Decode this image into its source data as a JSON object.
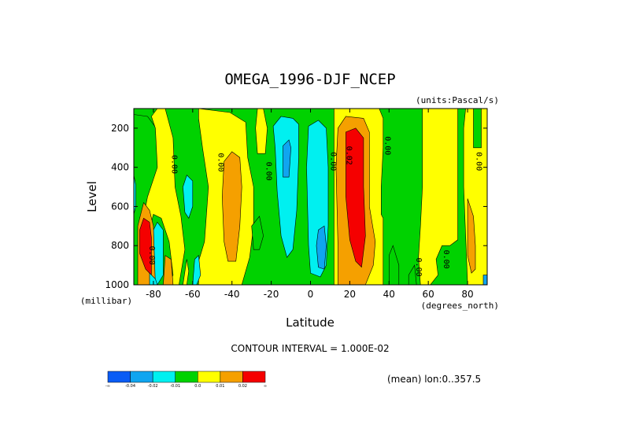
{
  "chart_data": {
    "type": "heatmap",
    "title": "OMEGA_1996-DJF_NCEP",
    "units_label": "(units:Pascal/s)",
    "xlabel": "Latitude",
    "ylabel": "Level",
    "x_unit_label": "(degrees_north)",
    "y_unit_label": "(millibar)",
    "xlim": [
      -90,
      90
    ],
    "ylim": [
      1000,
      100
    ],
    "x_ticks": [
      -80,
      -60,
      -40,
      -20,
      0,
      20,
      40,
      60,
      80
    ],
    "y_ticks": [
      200,
      400,
      600,
      800,
      1000
    ],
    "contour_interval_text": "CONTOUR INTERVAL = 1.000E-02",
    "mean_note": "(mean) lon:0..357.5",
    "contour_labels": [
      {
        "text": "0.00",
        "lat": -70.5,
        "lev": 385
      },
      {
        "text": "0.00",
        "lat": -47,
        "lev": 375
      },
      {
        "text": "0.00",
        "lat": -22.5,
        "lev": 420
      },
      {
        "text": "0.00",
        "lat": 10.5,
        "lev": 370
      },
      {
        "text": "0.02",
        "lat": 18.5,
        "lev": 340
      },
      {
        "text": "0.00",
        "lat": 38,
        "lev": 290
      },
      {
        "text": "0.00",
        "lat": 84.5,
        "lev": 370
      },
      {
        "text": "0.00",
        "lat": 54,
        "lev": 910
      },
      {
        "text": "0.00",
        "lat": 68,
        "lev": 870
      },
      {
        "text": "0.00",
        "lat": -82,
        "lev": 850
      }
    ],
    "legend": {
      "colors": [
        "#0a5cf5",
        "#10a5f0",
        "#00f0f0",
        "#00d200",
        "#ffff00",
        "#f5a000",
        "#f50000"
      ],
      "labels": [
        "-∞",
        "-0.04",
        "-0.02",
        "-0.01",
        "0.0",
        "0.01",
        "0.02",
        "∞"
      ]
    },
    "regions": {
      "colors": {
        "cyan": "#00f0f0",
        "blue": "#10a5f0",
        "green": "#00d200",
        "yellow": "#ffff00",
        "orange": "#f5a000",
        "red": "#f50000"
      },
      "blobs": [
        {
          "color": "green",
          "pts": [
            [
              -90,
              130
            ],
            [
              -83,
              140
            ],
            [
              -75,
              250
            ],
            [
              -74,
              650
            ],
            [
              -79,
              1000
            ],
            [
              -90,
              1000
            ]
          ]
        },
        {
          "color": "cyan",
          "pts": [
            [
              -90,
              440
            ],
            [
              -89,
              490
            ],
            [
              -89,
              600
            ],
            [
              -90,
              640
            ]
          ]
        },
        {
          "color": "yellow",
          "pts": [
            [
              -81,
              140
            ],
            [
              -78,
              100
            ],
            [
              -74,
              100
            ],
            [
              -70,
              250
            ],
            [
              -69,
              500
            ],
            [
              -66,
              650
            ],
            [
              -64,
              820
            ],
            [
              -67,
              1000
            ],
            [
              -76,
              1000
            ],
            [
              -79,
              800
            ],
            [
              -86,
              700
            ],
            [
              -83,
              550
            ],
            [
              -78,
              400
            ],
            [
              -79,
              200
            ]
          ]
        },
        {
          "color": "green",
          "pts": [
            [
              -80,
              640
            ],
            [
              -76,
              660
            ],
            [
              -72,
              780
            ],
            [
              -70,
              950
            ],
            [
              -72,
              1000
            ],
            [
              -81,
              1000
            ],
            [
              -84,
              800
            ]
          ]
        },
        {
          "color": "cyan",
          "pts": [
            [
              -82,
              760
            ],
            [
              -78,
              680
            ],
            [
              -75,
              720
            ],
            [
              -75,
              950
            ],
            [
              -78,
              1000
            ],
            [
              -83,
              1000
            ]
          ]
        },
        {
          "color": "orange",
          "pts": [
            [
              -88,
              700
            ],
            [
              -85,
              580
            ],
            [
              -82,
              620
            ],
            [
              -80,
              700
            ],
            [
              -79,
              1000
            ],
            [
              -88,
              1000
            ]
          ]
        },
        {
          "color": "red",
          "pts": [
            [
              -87,
              720
            ],
            [
              -85,
              660
            ],
            [
              -82,
              680
            ],
            [
              -81,
              760
            ],
            [
              -81,
              950
            ],
            [
              -84,
              920
            ],
            [
              -87,
              840
            ]
          ]
        },
        {
          "color": "orange",
          "pts": [
            [
              -74,
              850
            ],
            [
              -71,
              870
            ],
            [
              -70,
              1000
            ],
            [
              -75,
              1000
            ]
          ]
        },
        {
          "color": "yellow",
          "pts": [
            [
              -57,
              100
            ],
            [
              -41,
              120
            ],
            [
              -33,
              170
            ],
            [
              -32,
              350
            ],
            [
              -29,
              500
            ],
            [
              -29,
              700
            ],
            [
              -31,
              860
            ],
            [
              -35,
              1000
            ],
            [
              -57,
              1000
            ],
            [
              -57,
              880
            ],
            [
              -54,
              780
            ],
            [
              -52,
              500
            ],
            [
              -55,
              300
            ],
            [
              -57,
              150
            ]
          ]
        },
        {
          "color": "orange",
          "pts": [
            [
              -44,
              370
            ],
            [
              -40,
              320
            ],
            [
              -36,
              350
            ],
            [
              -35,
              500
            ],
            [
              -36,
              700
            ],
            [
              -38,
              880
            ],
            [
              -42,
              880
            ],
            [
              -44,
              780
            ],
            [
              -45,
              550
            ]
          ]
        },
        {
          "color": "cyan",
          "pts": [
            [
              -65,
              500
            ],
            [
              -63,
              440
            ],
            [
              -60,
              470
            ],
            [
              -60,
              600
            ],
            [
              -62,
              660
            ],
            [
              -64,
              630
            ]
          ]
        },
        {
          "color": "cyan",
          "pts": [
            [
              -59,
              870
            ],
            [
              -57,
              850
            ],
            [
              -56,
              950
            ],
            [
              -58,
              1000
            ],
            [
              -60,
              1000
            ]
          ]
        },
        {
          "color": "yellow",
          "pts": [
            [
              -27,
              100
            ],
            [
              -24,
              100
            ],
            [
              -22,
              200
            ],
            [
              -23,
              330
            ],
            [
              -27,
              330
            ],
            [
              -28,
              200
            ]
          ]
        },
        {
          "color": "cyan",
          "pts": [
            [
              -19,
              190
            ],
            [
              -15,
              140
            ],
            [
              -9,
              150
            ],
            [
              -6,
              180
            ],
            [
              -6,
              350
            ],
            [
              -7,
              620
            ],
            [
              -9,
              820
            ],
            [
              -12,
              860
            ],
            [
              -15,
              750
            ],
            [
              -17,
              520
            ],
            [
              -18,
              300
            ]
          ]
        },
        {
          "color": "blue",
          "pts": [
            [
              -14,
              290
            ],
            [
              -11,
              260
            ],
            [
              -10,
              300
            ],
            [
              -11,
              450
            ],
            [
              -14,
              450
            ]
          ]
        },
        {
          "color": "cyan",
          "pts": [
            [
              -1,
              190
            ],
            [
              4,
              160
            ],
            [
              8,
              200
            ],
            [
              9,
              400
            ],
            [
              9,
              700
            ],
            [
              8,
              900
            ],
            [
              5,
              960
            ],
            [
              0,
              940
            ],
            [
              -1,
              800
            ],
            [
              -2,
              400
            ]
          ]
        },
        {
          "color": "blue",
          "pts": [
            [
              4,
              720
            ],
            [
              7,
              700
            ],
            [
              8,
              800
            ],
            [
              7,
              920
            ],
            [
              4,
              910
            ],
            [
              3,
              800
            ]
          ]
        },
        {
          "color": "green",
          "pts": [
            [
              -30,
              700
            ],
            [
              -26,
              650
            ],
            [
              -24,
              750
            ],
            [
              -26,
              820
            ],
            [
              -29,
              820
            ]
          ]
        },
        {
          "color": "yellow",
          "pts": [
            [
              12,
              100
            ],
            [
              35,
              100
            ],
            [
              37,
              150
            ],
            [
              37,
              300
            ],
            [
              36,
              500
            ],
            [
              36,
              640
            ],
            [
              37,
              660
            ],
            [
              37,
              1000
            ],
            [
              12,
              1000
            ]
          ]
        },
        {
          "color": "orange",
          "pts": [
            [
              14,
              200
            ],
            [
              18,
              140
            ],
            [
              27,
              150
            ],
            [
              30,
              220
            ],
            [
              30,
              400
            ],
            [
              30,
              600
            ],
            [
              33,
              780
            ],
            [
              32,
              900
            ],
            [
              28,
              1000
            ],
            [
              14,
              1000
            ],
            [
              14,
              800
            ],
            [
              13,
              400
            ]
          ]
        },
        {
          "color": "red",
          "pts": [
            [
              18,
              220
            ],
            [
              23,
              200
            ],
            [
              27,
              250
            ],
            [
              27,
              500
            ],
            [
              28,
              750
            ],
            [
              26,
              910
            ],
            [
              23,
              880
            ],
            [
              20,
              770
            ],
            [
              18,
              550
            ]
          ]
        },
        {
          "color": "yellow",
          "pts": [
            [
              57,
              100
            ],
            [
              75,
              100
            ],
            [
              75,
              400
            ],
            [
              75,
              700
            ],
            [
              75,
              770
            ],
            [
              71,
              800
            ],
            [
              67,
              800
            ],
            [
              64,
              870
            ],
            [
              65,
              950
            ],
            [
              61,
              1000
            ],
            [
              56,
              1000
            ],
            [
              55,
              860
            ],
            [
              56,
              700
            ],
            [
              57,
              500
            ],
            [
              57,
              200
            ]
          ]
        },
        {
          "color": "yellow",
          "pts": [
            [
              79,
              100
            ],
            [
              90,
              100
            ],
            [
              90,
              1000
            ],
            [
              80,
              1000
            ],
            [
              79,
              750
            ],
            [
              78,
              500
            ],
            [
              78,
              200
            ]
          ]
        },
        {
          "color": "orange",
          "pts": [
            [
              80,
              560
            ],
            [
              83,
              650
            ],
            [
              84,
              800
            ],
            [
              84,
              920
            ],
            [
              82,
              940
            ],
            [
              80,
              850
            ],
            [
              80,
              700
            ]
          ]
        },
        {
          "color": "green",
          "pts": [
            [
              83,
              100
            ],
            [
              87,
              100
            ],
            [
              87,
              300
            ],
            [
              83,
              300
            ]
          ]
        },
        {
          "color": "green",
          "pts": [
            [
              40,
              850
            ],
            [
              42,
              800
            ],
            [
              45,
              900
            ],
            [
              45,
              1000
            ],
            [
              40,
              1000
            ]
          ]
        },
        {
          "color": "green",
          "pts": [
            [
              50,
              950
            ],
            [
              53,
              900
            ],
            [
              54,
              1000
            ],
            [
              50,
              1000
            ]
          ]
        },
        {
          "color": "blue",
          "pts": [
            [
              88,
              950
            ],
            [
              90,
              950
            ],
            [
              90,
              1000
            ],
            [
              88,
              1000
            ]
          ]
        },
        {
          "color": "cyan",
          "pts": [
            [
              -82,
              940
            ],
            [
              -79,
              970
            ],
            [
              -78,
              1000
            ],
            [
              -82,
              1000
            ]
          ]
        },
        {
          "color": "yellow",
          "pts": [
            [
              -63,
              870
            ],
            [
              -62,
              930
            ],
            [
              -63,
              1000
            ],
            [
              -65,
              1000
            ]
          ]
        }
      ]
    }
  }
}
